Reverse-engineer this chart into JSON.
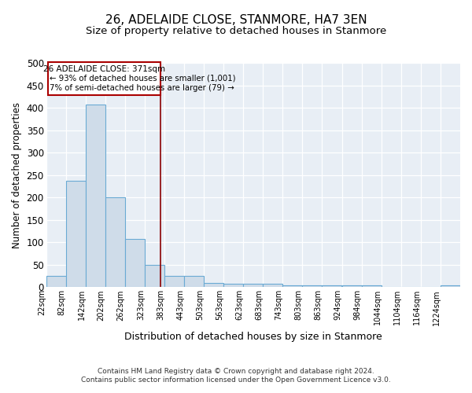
{
  "title": "26, ADELAIDE CLOSE, STANMORE, HA7 3EN",
  "subtitle": "Size of property relative to detached houses in Stanmore",
  "xlabel": "Distribution of detached houses by size in Stanmore",
  "ylabel": "Number of detached properties",
  "bin_edges": [
    22,
    82,
    142,
    202,
    262,
    323,
    383,
    443,
    503,
    563,
    623,
    683,
    743,
    803,
    863,
    924,
    984,
    1044,
    1104,
    1164,
    1224
  ],
  "bar_heights": [
    25,
    237,
    407,
    200,
    107,
    49,
    25,
    25,
    10,
    7,
    7,
    7,
    4,
    4,
    4,
    4,
    4,
    0,
    0,
    0,
    4
  ],
  "bar_color": "#cfdce9",
  "bar_edge_color": "#6aaad4",
  "red_line_x": 371,
  "annotation_title": "26 ADELAIDE CLOSE: 371sqm",
  "annotation_line1": "← 93% of detached houses are smaller (1,001)",
  "annotation_line2": "7% of semi-detached houses are larger (79) →",
  "annotation_box_color": "#ffffff",
  "annotation_box_edge": "#aa0000",
  "footnote1": "Contains HM Land Registry data © Crown copyright and database right 2024.",
  "footnote2": "Contains public sector information licensed under the Open Government Licence v3.0.",
  "ylim": [
    0,
    500
  ],
  "background_color": "#e8eef5",
  "grid_color": "#ffffff",
  "title_fontsize": 11,
  "subtitle_fontsize": 9.5,
  "tick_label_fontsize": 7,
  "ylabel_fontsize": 8.5,
  "xlabel_fontsize": 9,
  "annotation_fontsize": 7.5,
  "footnote_fontsize": 6.5
}
